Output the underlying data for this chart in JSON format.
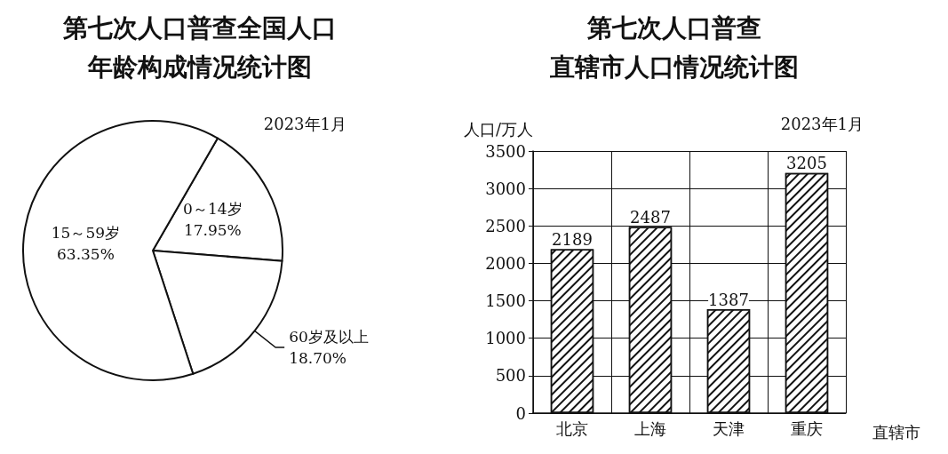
{
  "chart_data": [
    {
      "type": "pie",
      "title": "第七次人口普查全国人口",
      "subtitle": "年龄构成情况统计图",
      "annotations": [
        "2023年1月"
      ],
      "categories": [
        "0～14岁",
        "60岁及以上",
        "15～59岁"
      ],
      "values": [
        17.95,
        18.7,
        63.35
      ],
      "value_labels": [
        "17.95%",
        "18.70%",
        "63.35%"
      ],
      "colors": [
        "#ffffff",
        "#ffffff",
        "#ffffff"
      ],
      "legend": false
    },
    {
      "type": "bar",
      "title": "第七次人口普查",
      "subtitle": "直辖市人口情况统计图",
      "annotations": [
        "2023年1月"
      ],
      "ylabel": "人口/万人",
      "xlabel": "直辖市",
      "categories": [
        "北京",
        "上海",
        "天津",
        "重庆"
      ],
      "values": [
        2189,
        2487,
        1387,
        3205
      ],
      "color": "#ffffff",
      "ylim": [
        0,
        3500
      ],
      "yticks": [
        0,
        500,
        1000,
        1500,
        2000,
        2500,
        3000,
        3500
      ],
      "grid": true,
      "data_labels": true,
      "legend": false
    }
  ]
}
